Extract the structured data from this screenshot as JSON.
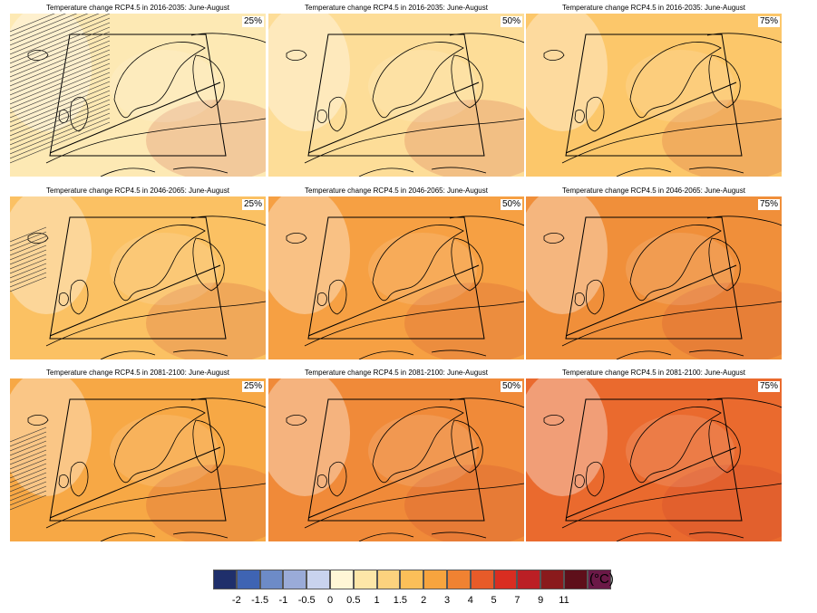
{
  "panels": [
    {
      "title": "Temperature change RCP4.5 in 2016-2035: June-August",
      "percentile": "25%",
      "fill": "#fde9b4"
    },
    {
      "title": "Temperature change RCP4.5 in 2016-2035: June-August",
      "percentile": "50%",
      "fill": "#fddd98"
    },
    {
      "title": "Temperature change RCP4.5 in 2016-2035: June-August",
      "percentile": "75%",
      "fill": "#fcc76a"
    },
    {
      "title": "Temperature change RCP4.5 in 2046-2065: June-August",
      "percentile": "25%",
      "fill": "#fbc163"
    },
    {
      "title": "Temperature change RCP4.5 in 2046-2065: June-August",
      "percentile": "50%",
      "fill": "#f6a043"
    },
    {
      "title": "Temperature change RCP4.5 in 2046-2065: June-August",
      "percentile": "75%",
      "fill": "#f08f3a"
    },
    {
      "title": "Temperature change RCP4.5 in 2081-2100: June-August",
      "percentile": "25%",
      "fill": "#f7a845"
    },
    {
      "title": "Temperature change RCP4.5 in 2081-2100: June-August",
      "percentile": "50%",
      "fill": "#f08a39"
    },
    {
      "title": "Temperature change RCP4.5 in 2081-2100: June-August",
      "percentile": "75%",
      "fill": "#ea6a2e"
    }
  ],
  "legend": {
    "unit": "(°C)",
    "colors": [
      "#1f2f6b",
      "#3f64b3",
      "#6d8bc7",
      "#9aabd8",
      "#c9d3ee",
      "#fff6d6",
      "#fde6a8",
      "#fcd27e",
      "#fbbf59",
      "#f7a43e",
      "#f08232",
      "#e75b29",
      "#d92d21",
      "#bb1f25",
      "#8a1a1c",
      "#5e0f1a",
      "#6b1947"
    ],
    "ticks": [
      "-2",
      "-1.5",
      "-1",
      "-0.5",
      "0",
      "0.5",
      "1",
      "1.5",
      "2",
      "3",
      "4",
      "5",
      "7",
      "9",
      "11"
    ]
  }
}
